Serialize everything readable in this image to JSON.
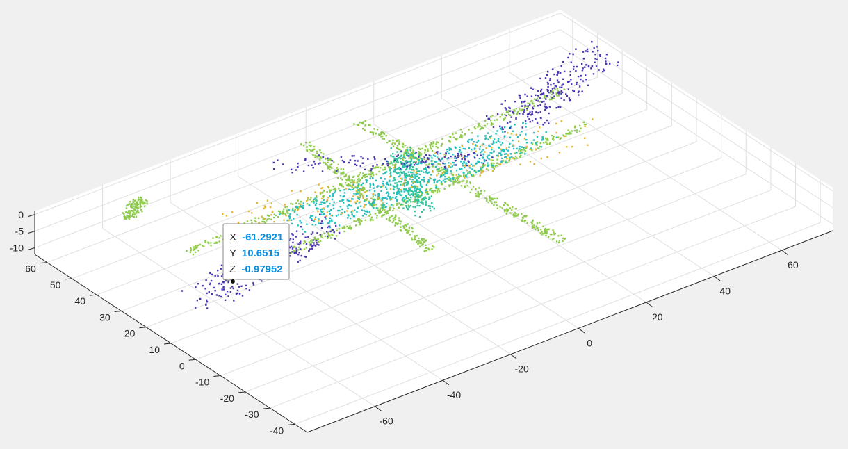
{
  "chart_data": {
    "type": "scatter",
    "title": "",
    "xlabel": "",
    "ylabel": "",
    "zlabel": "",
    "xlim": [
      -80,
      75
    ],
    "ylim": [
      -45,
      65
    ],
    "zlim": [
      -12,
      1
    ],
    "grid": true,
    "x_ticks": [
      "-60",
      "-40",
      "-20",
      "0",
      "20",
      "40",
      "60"
    ],
    "y_ticks": [
      "-40",
      "-30",
      "-20",
      "-10",
      "0",
      "10",
      "20",
      "30",
      "40",
      "50",
      "60"
    ],
    "z_ticks": [
      "0",
      "-5",
      "-10"
    ],
    "colors": {
      "background": "#f0f0f0",
      "axes_plane": "#ffffff",
      "grid": "#dfdfdf",
      "axis_line": "#262626",
      "tip_value": "#0a8fe0",
      "cluster_palette": [
        "#8ecb4c",
        "#22c0bf",
        "#e8b52d",
        "#4a36b4",
        "#2fc3a0"
      ]
    },
    "segments": [
      {
        "cluster": "road-lane-1",
        "color_index": 0,
        "x0": -60,
        "y0": 30,
        "x1": 55,
        "y1": 37,
        "z": -1.5,
        "spread": 1.6,
        "count": 420
      },
      {
        "cluster": "road-lane-2",
        "color_index": 0,
        "x0": -55,
        "y0": 14,
        "x1": 50,
        "y1": 20,
        "z": -1.5,
        "spread": 1.4,
        "count": 380
      },
      {
        "cluster": "cross-street-a",
        "color_index": 0,
        "x0": -15,
        "y0": -5,
        "x1": -8,
        "y1": 55,
        "z": -1.5,
        "spread": 1.5,
        "count": 260
      },
      {
        "cluster": "cross-street-b",
        "color_index": 0,
        "x0": 12,
        "y0": -22,
        "x1": 8,
        "y1": 55,
        "z": -1.5,
        "spread": 1.5,
        "count": 300
      },
      {
        "cluster": "ground-ring",
        "color_index": 1,
        "x0": -30,
        "y0": 25,
        "x1": 35,
        "y1": 25,
        "z": -1.8,
        "spread": 7,
        "count": 620
      },
      {
        "cluster": "ground-center",
        "color_index": 4,
        "x0": -6,
        "y0": 12,
        "x1": 8,
        "y1": 38,
        "z": -1.8,
        "spread": 3.5,
        "count": 260
      },
      {
        "cluster": "vehicles",
        "color_index": 2,
        "x0": -45,
        "y0": 32,
        "x1": 45,
        "y1": 18,
        "z": -0.8,
        "spread": 8,
        "count": 170
      },
      {
        "cluster": "trees-left",
        "color_index": 3,
        "x0": -72,
        "y0": 8,
        "x1": -30,
        "y1": 18,
        "z": -0.5,
        "spread": 6,
        "count": 240
      },
      {
        "cluster": "trees-right",
        "color_index": 3,
        "x0": 35,
        "y0": 30,
        "x1": 70,
        "y1": 45,
        "z": -0.5,
        "spread": 6,
        "count": 230
      },
      {
        "cluster": "structures",
        "color_index": 3,
        "x0": -20,
        "y0": 48,
        "x1": 20,
        "y1": 22,
        "z": -0.5,
        "spread": 4,
        "count": 120
      },
      {
        "cluster": "building-block",
        "color_index": 0,
        "x0": -62,
        "y0": 52,
        "x1": -55,
        "y1": 57,
        "z": -1,
        "spread": 1.8,
        "count": 110
      }
    ],
    "datatip": {
      "x_label": "X",
      "x_value": "-61.2921",
      "y_label": "Y",
      "y_value": "10.6515",
      "z_label": "Z",
      "z_value": "-0.97952",
      "x": -61.2921,
      "y": 10.6515,
      "z": -0.97952
    }
  }
}
